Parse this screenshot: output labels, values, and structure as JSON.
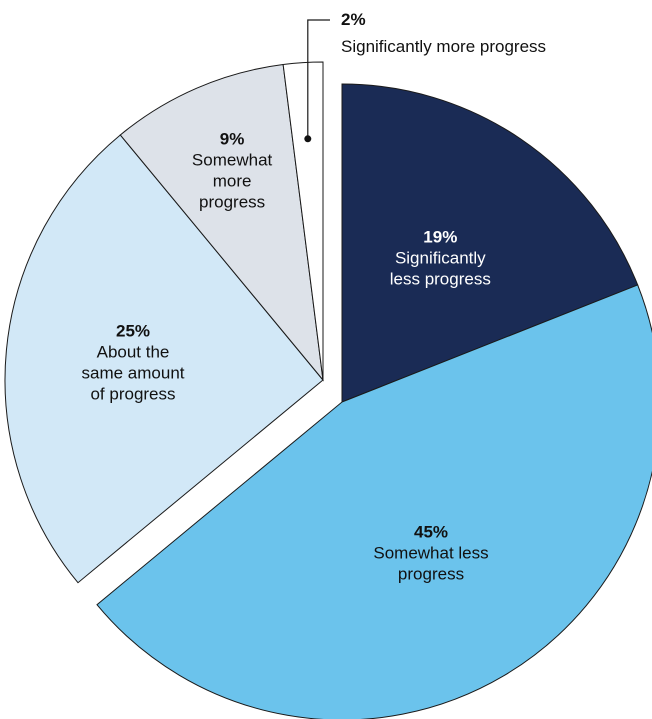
{
  "chart_data": {
    "type": "pie",
    "start_angle_deg": 0,
    "direction": "clockwise",
    "exploded": [
      "Significantly less progress",
      "Somewhat less progress"
    ],
    "slices": [
      {
        "name": "Significantly less progress",
        "value": 19,
        "label": "19%",
        "color": "#1a2b55",
        "text_color": "#ffffff",
        "lines": [
          "Significantly",
          "less progress"
        ]
      },
      {
        "name": "Somewhat less progress",
        "value": 45,
        "label": "45%",
        "color": "#6bc3ec",
        "text_color": "#111111",
        "lines": [
          "Somewhat less",
          "progress"
        ]
      },
      {
        "name": "About the same amount of progress",
        "value": 25,
        "label": "25%",
        "color": "#d2e8f7",
        "text_color": "#111111",
        "lines": [
          "About the",
          "same amount",
          "of progress"
        ]
      },
      {
        "name": "Somewhat more progress",
        "value": 9,
        "label": "9%",
        "color": "#dde2e9",
        "text_color": "#111111",
        "lines": [
          "Somewhat",
          "more",
          "progress"
        ]
      },
      {
        "name": "Significantly more progress",
        "value": 2,
        "label": "2%",
        "color": "#ffffff",
        "text_color": "#111111",
        "lines": [
          "Significantly more progress"
        ],
        "callout": true
      }
    ]
  }
}
